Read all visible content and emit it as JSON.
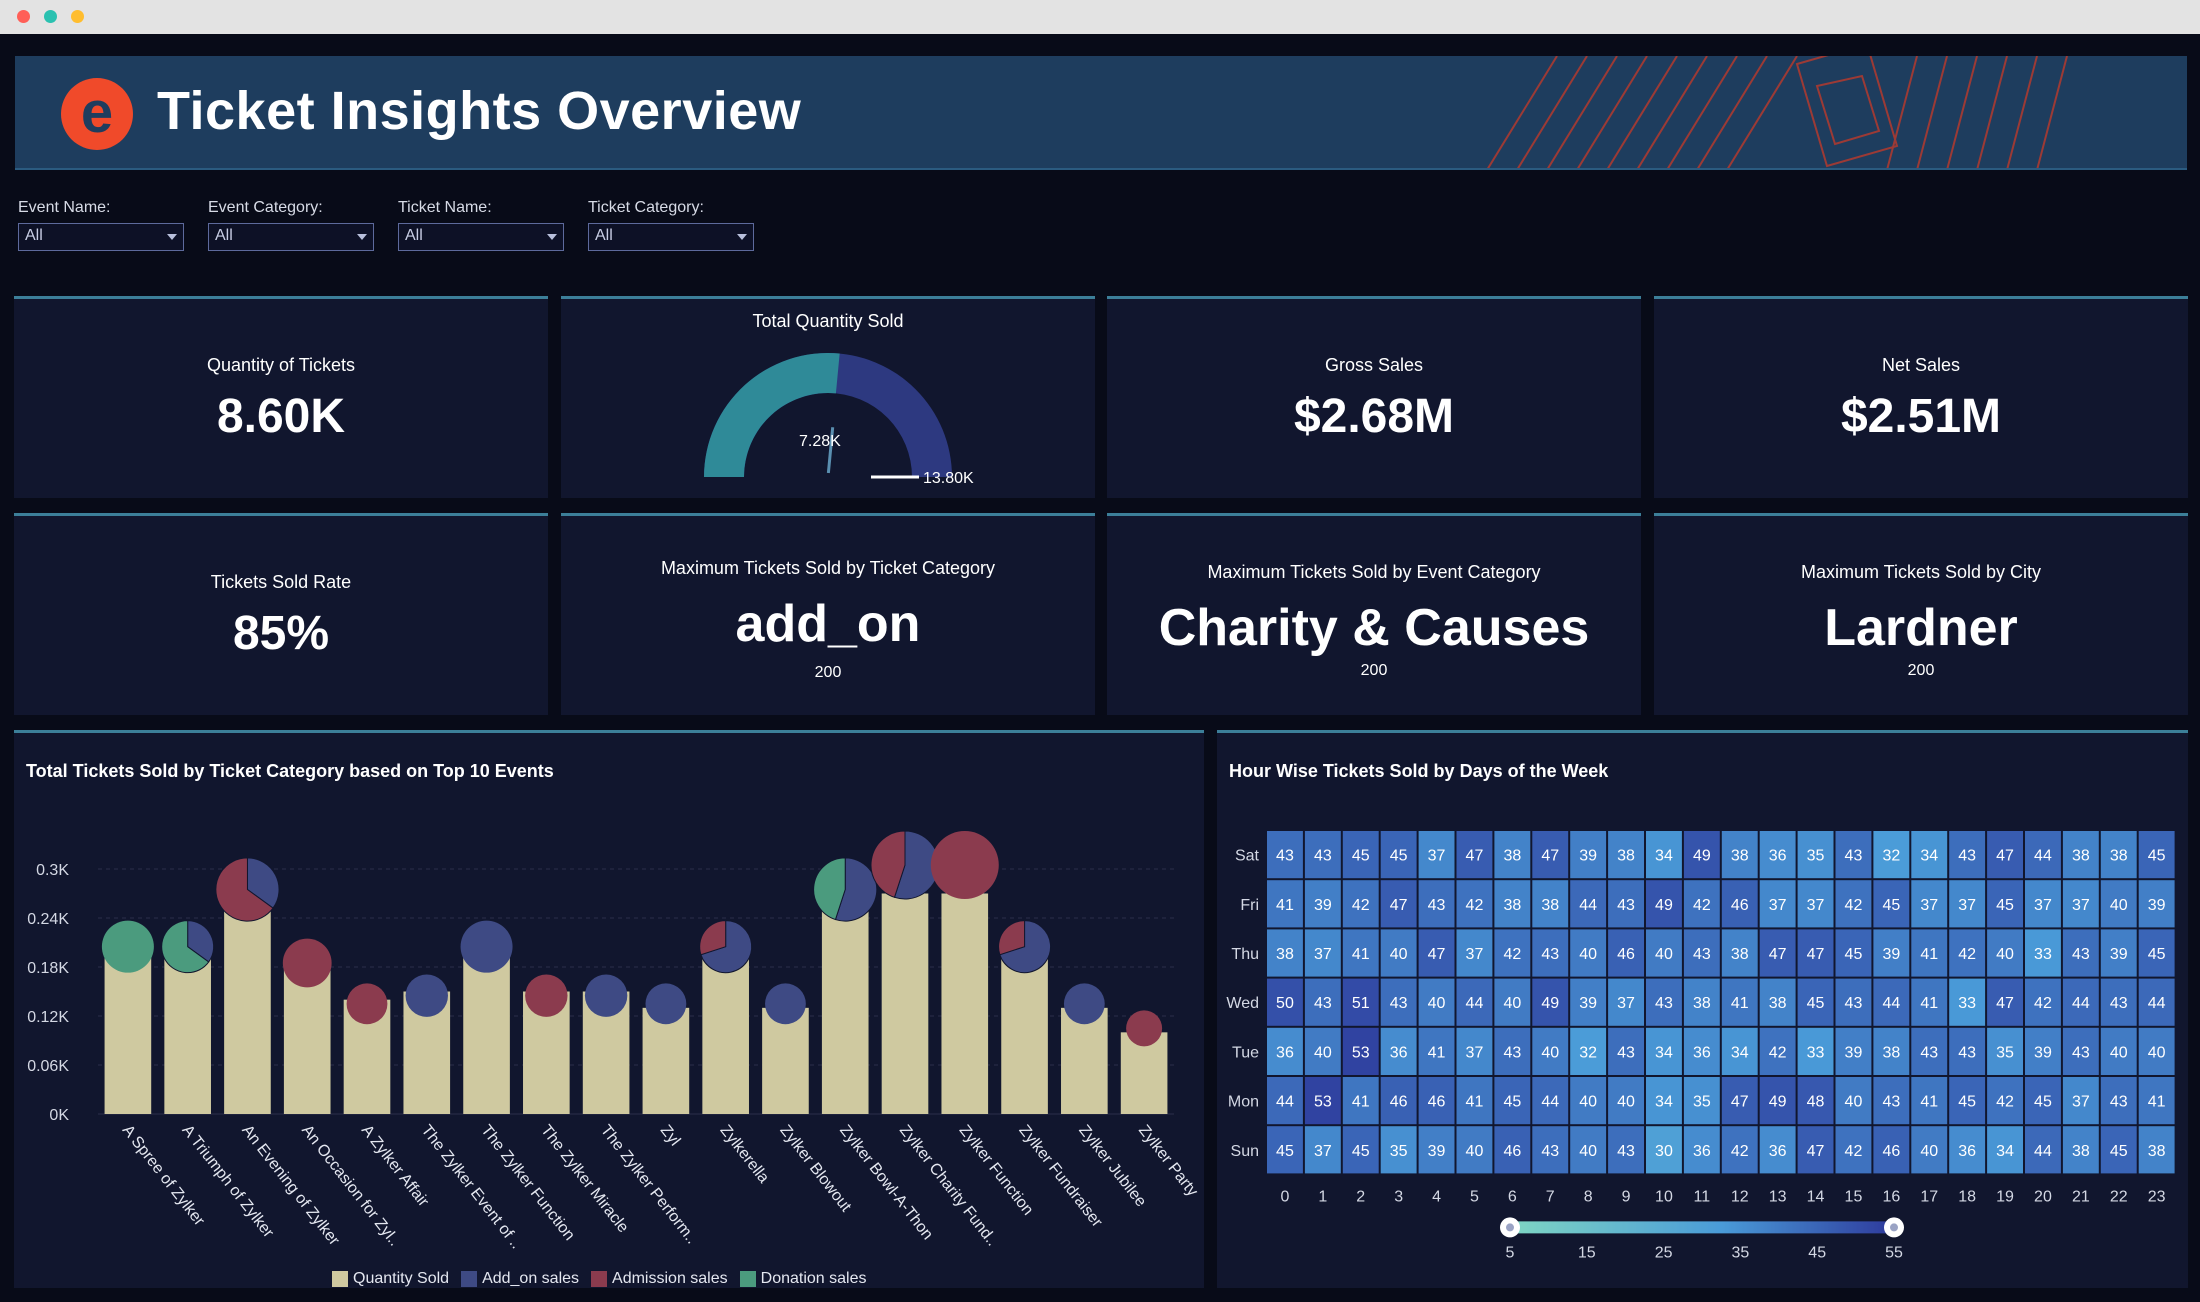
{
  "window": {
    "dot_colors": [
      "#ff5f57",
      "#2ac1b0",
      "#ffbd2e"
    ]
  },
  "header": {
    "title": "Ticket Insights Overview",
    "logo_letter": "e"
  },
  "filters": [
    {
      "label": "Event Name:",
      "value": "All"
    },
    {
      "label": "Event Category:",
      "value": "All"
    },
    {
      "label": "Ticket Name:",
      "value": "All"
    },
    {
      "label": "Ticket Category:",
      "value": "All"
    }
  ],
  "kpis": {
    "quantity_of_tickets": {
      "title": "Quantity of Tickets",
      "value": "8.60K"
    },
    "total_quantity_sold": {
      "title": "Total Quantity Sold",
      "value_label": "7.28K",
      "max_label": "13.80K",
      "value": 7.28,
      "max": 13.8,
      "fill_fraction": 0.53
    },
    "gross_sales": {
      "title": "Gross Sales",
      "value": "$2.68M"
    },
    "net_sales": {
      "title": "Net Sales",
      "value": "$2.51M"
    },
    "tickets_sold_rate": {
      "title": "Tickets Sold Rate",
      "value": "85%"
    },
    "max_by_ticket_category": {
      "title": "Maximum Tickets Sold by Ticket Category",
      "value": "add_on",
      "count": "200"
    },
    "max_by_event_category": {
      "title": "Maximum Tickets Sold by Event Category",
      "value": "Charity & Causes",
      "count": "200"
    },
    "max_by_city": {
      "title": "Maximum Tickets Sold by City",
      "value": "Lardner",
      "count": "200"
    }
  },
  "colors": {
    "quantity": "#cfc9a0",
    "add_on": "#3e4a84",
    "admission": "#8b3b4e",
    "donation": "#4b9b7e",
    "gauge_fill": "#2f8a98",
    "gauge_track": "#2d3980",
    "heat_low": "#7fd6c3",
    "heat_high": "#2e3a9c"
  },
  "chart_data": [
    {
      "type": "bar",
      "title": "Total Tickets Sold by Ticket Category based on Top 10 Events",
      "categories": [
        "A Spree of Zylker",
        "A Triumph of Zylker",
        "An Evening of Zylker",
        "An Occasion for Zyl..",
        "A Zylker Affair",
        "The Zylker Event of ..",
        "The Zylker Function",
        "The Zylker Miracle",
        "The Zylker Perform..",
        "Zyl",
        "Zylkerella",
        "Zylker Blowout",
        "Zylker Bowl-A-Thon",
        "Zylker Charity Fund..",
        "Zylker Function",
        "Zylker Fundraiser",
        "Zylker Jubilee",
        "Zylker Party"
      ],
      "yticks": [
        "0K",
        "0.06K",
        "0.12K",
        "0.18K",
        "0.24K",
        "0.3K"
      ],
      "ylim": [
        0,
        0.3
      ],
      "series": [
        {
          "name": "Quantity Sold",
          "values": [
            0.2,
            0.21,
            0.27,
            0.18,
            0.14,
            0.15,
            0.2,
            0.15,
            0.15,
            0.13,
            0.2,
            0.13,
            0.27,
            0.27,
            0.27,
            0.2,
            0.13,
            0.1
          ]
        }
      ],
      "pies": [
        {
          "size": 0.2,
          "add_on": 0,
          "admission": 0,
          "donation": 1
        },
        {
          "size": 0.2,
          "add_on": 0.35,
          "admission": 0,
          "donation": 0.65
        },
        {
          "size": 0.27,
          "add_on": 0.35,
          "admission": 0.65,
          "donation": 0
        },
        {
          "size": 0.18,
          "add_on": 0,
          "admission": 1,
          "donation": 0
        },
        {
          "size": 0.13,
          "add_on": 0,
          "admission": 1,
          "donation": 0
        },
        {
          "size": 0.14,
          "add_on": 1,
          "admission": 0,
          "donation": 0
        },
        {
          "size": 0.2,
          "add_on": 1,
          "admission": 0,
          "donation": 0
        },
        {
          "size": 0.14,
          "add_on": 0,
          "admission": 1,
          "donation": 0
        },
        {
          "size": 0.14,
          "add_on": 1,
          "admission": 0,
          "donation": 0
        },
        {
          "size": 0.13,
          "add_on": 1,
          "admission": 0,
          "donation": 0
        },
        {
          "size": 0.2,
          "add_on": 0.7,
          "admission": 0.3,
          "donation": 0
        },
        {
          "size": 0.13,
          "add_on": 1,
          "admission": 0,
          "donation": 0
        },
        {
          "size": 0.27,
          "add_on": 0.55,
          "admission": 0,
          "donation": 0.45
        },
        {
          "size": 0.3,
          "add_on": 0.55,
          "admission": 0.45,
          "donation": 0
        },
        {
          "size": 0.3,
          "add_on": 0,
          "admission": 1,
          "donation": 0
        },
        {
          "size": 0.2,
          "add_on": 0.7,
          "admission": 0.3,
          "donation": 0
        },
        {
          "size": 0.13,
          "add_on": 1,
          "admission": 0,
          "donation": 0
        },
        {
          "size": 0.1,
          "add_on": 0,
          "admission": 1,
          "donation": 0
        }
      ],
      "legend": [
        "Quantity Sold",
        "Add_on sales",
        "Admission sales",
        "Donation sales"
      ]
    },
    {
      "type": "heatmap",
      "title": "Hour Wise Tickets Sold by Days of the Week",
      "rows": [
        "Sat",
        "Fri",
        "Thu",
        "Wed",
        "Tue",
        "Mon",
        "Sun"
      ],
      "columns": [
        "0",
        "1",
        "2",
        "3",
        "4",
        "5",
        "6",
        "7",
        "8",
        "9",
        "10",
        "11",
        "12",
        "13",
        "14",
        "15",
        "16",
        "17",
        "18",
        "19",
        "20",
        "21",
        "22",
        "23"
      ],
      "values": [
        [
          43,
          43,
          45,
          45,
          37,
          47,
          38,
          47,
          39,
          38,
          34,
          49,
          38,
          36,
          35,
          43,
          32,
          34,
          43,
          47,
          44,
          38,
          38,
          45
        ],
        [
          41,
          39,
          42,
          47,
          43,
          42,
          38,
          38,
          44,
          43,
          49,
          42,
          46,
          37,
          37,
          42,
          45,
          37,
          37,
          45,
          37,
          37,
          40,
          39
        ],
        [
          38,
          37,
          41,
          40,
          47,
          37,
          42,
          43,
          40,
          46,
          40,
          43,
          38,
          47,
          47,
          45,
          39,
          41,
          42,
          40,
          33,
          43,
          39,
          45
        ],
        [
          50,
          43,
          51,
          43,
          40,
          44,
          40,
          49,
          39,
          37,
          43,
          38,
          41,
          38,
          45,
          43,
          44,
          41,
          33,
          47,
          42,
          44,
          43,
          44
        ],
        [
          36,
          40,
          53,
          36,
          41,
          37,
          43,
          40,
          32,
          43,
          34,
          36,
          34,
          42,
          33,
          39,
          38,
          43,
          43,
          35,
          39,
          43,
          40,
          40
        ],
        [
          44,
          53,
          41,
          46,
          46,
          41,
          45,
          44,
          40,
          40,
          34,
          35,
          47,
          49,
          48,
          40,
          43,
          41,
          45,
          42,
          45,
          37,
          43,
          41
        ],
        [
          45,
          37,
          45,
          35,
          39,
          40,
          46,
          43,
          40,
          43,
          30,
          36,
          42,
          36,
          47,
          42,
          46,
          40,
          36,
          34,
          44,
          38,
          45,
          38
        ]
      ],
      "scale_ticks": [
        "5",
        "15",
        "25",
        "35",
        "45",
        "55"
      ],
      "scale_range": [
        5,
        55
      ]
    }
  ]
}
